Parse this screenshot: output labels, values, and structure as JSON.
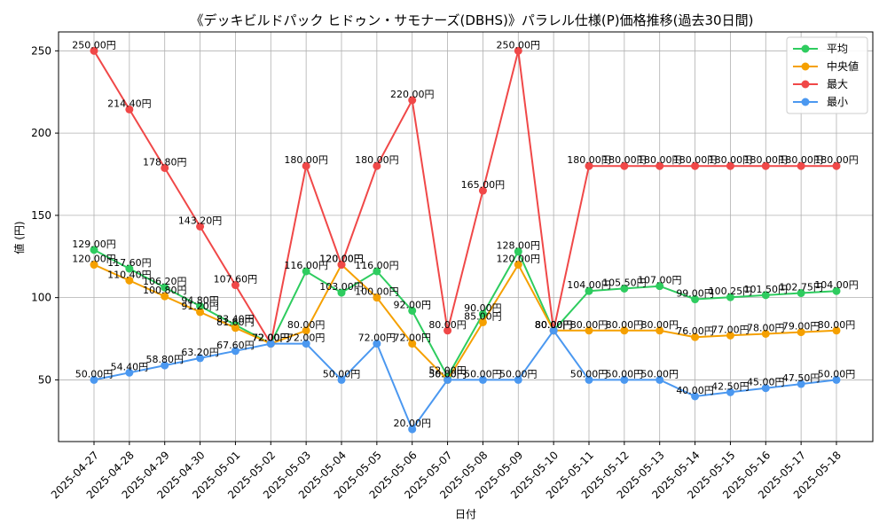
{
  "chart_data": {
    "type": "line",
    "title": "《デッキビルドパック ヒドゥン・サモナーズ(DBHS)》パラレル仕様(P)価格推移(過去30日間)",
    "xlabel": "日付",
    "ylabel": "値 (円)",
    "ylim": [
      12.5,
      261.5
    ],
    "yticks": [
      50,
      100,
      150,
      200,
      250
    ],
    "grid": true,
    "legend_position": "top-right",
    "value_suffix": "円",
    "categories": [
      "2025-04-27",
      "2025-04-28",
      "2025-04-29",
      "2025-04-30",
      "2025-05-01",
      "2025-05-02",
      "2025-05-03",
      "2025-05-04",
      "2025-05-05",
      "2025-05-06",
      "2025-05-07",
      "2025-05-08",
      "2025-05-09",
      "2025-05-10",
      "2025-05-11",
      "2025-05-12",
      "2025-05-13",
      "2025-05-14",
      "2025-05-15",
      "2025-05-16",
      "2025-05-17",
      "2025-05-18"
    ],
    "series": [
      {
        "name": "平均",
        "color": "#2ecc5f",
        "values": [
          129.0,
          117.6,
          106.2,
          94.8,
          83.4,
          72.0,
          116.0,
          103.0,
          116.0,
          92.0,
          52.0,
          90.0,
          128.0,
          80.0,
          104.0,
          105.5,
          107.0,
          99.0,
          100.25,
          101.5,
          102.75,
          104.0
        ]
      },
      {
        "name": "中央値",
        "color": "#f5a000",
        "values": [
          120.0,
          110.4,
          100.8,
          91.2,
          81.6,
          72.0,
          80.0,
          120.0,
          100.0,
          72.0,
          50.0,
          85.0,
          120.0,
          80.0,
          80.0,
          80.0,
          80.0,
          76.0,
          77.0,
          78.0,
          79.0,
          80.0
        ]
      },
      {
        "name": "最大",
        "color": "#f04848",
        "values": [
          250.0,
          214.4,
          178.8,
          143.2,
          107.6,
          72.0,
          180.0,
          120.0,
          180.0,
          220.0,
          80.0,
          165.0,
          250.0,
          80.0,
          180.0,
          180.0,
          180.0,
          180.0,
          180.0,
          180.0,
          180.0,
          180.0
        ]
      },
      {
        "name": "最小",
        "color": "#4b98f0",
        "values": [
          50.0,
          54.4,
          58.8,
          63.2,
          67.6,
          72.0,
          72.0,
          50.0,
          72.0,
          20.0,
          50.0,
          50.0,
          50.0,
          80.0,
          50.0,
          50.0,
          50.0,
          40.0,
          42.5,
          45.0,
          47.5,
          50.0
        ]
      }
    ]
  }
}
